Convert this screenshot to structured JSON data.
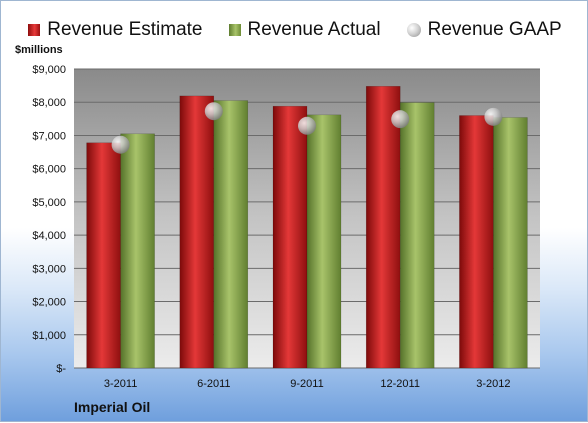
{
  "chart_data": {
    "type": "bar",
    "categories": [
      "3-2011",
      "6-2011",
      "9-2011",
      "12-2011",
      "3-2012"
    ],
    "series": [
      {
        "name": "Revenue Estimate",
        "values": [
          6780,
          8190,
          7880,
          8480,
          7600
        ],
        "color": "#c81e1e"
      },
      {
        "name": "Revenue Actual",
        "values": [
          7050,
          8050,
          7620,
          7990,
          7540
        ],
        "color": "#8fae4f"
      },
      {
        "name": "Revenue GAAP",
        "values": [
          6720,
          7730,
          7290,
          7490,
          7560
        ],
        "color": "#bfbfbf",
        "marker": "sphere"
      }
    ],
    "ylabel": "$millions",
    "ylim": [
      0,
      9000
    ],
    "yticks": [
      0,
      1000,
      2000,
      3000,
      4000,
      5000,
      6000,
      7000,
      8000,
      9000
    ],
    "ytick_labels": [
      "$-",
      "$1,000",
      "$2,000",
      "$3,000",
      "$4,000",
      "$5,000",
      "$6,000",
      "$7,000",
      "$8,000",
      "$9,000"
    ],
    "legend_position": "top",
    "grid": true
  },
  "company": "Imperial Oil"
}
